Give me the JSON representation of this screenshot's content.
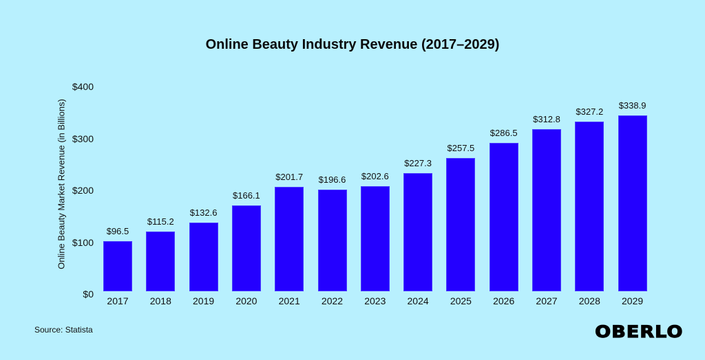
{
  "title": "Online Beauty Industry Revenue (2017–2029)",
  "source": "Source: Statista",
  "logo": "OBERLO",
  "colors": {
    "background": "#b8f0fe",
    "bar": "#2400ff",
    "text": "#111111"
  },
  "chart_data": {
    "type": "bar",
    "title": "Online Beauty Industry Revenue (2017–2029)",
    "xlabel": "",
    "ylabel": "Online Beauty Market Revenue (in Billions)",
    "categories": [
      "2017",
      "2018",
      "2019",
      "2020",
      "2021",
      "2022",
      "2023",
      "2024",
      "2025",
      "2026",
      "2027",
      "2028",
      "2029"
    ],
    "values": [
      96.5,
      115.2,
      132.6,
      166.1,
      201.7,
      196.6,
      202.6,
      227.3,
      257.5,
      286.5,
      312.8,
      327.2,
      338.9
    ],
    "value_labels": [
      "$96.5",
      "$115.2",
      "$132.6",
      "$166.1",
      "$201.7",
      "$196.6",
      "$202.6",
      "$227.3",
      "$257.5",
      "$286.5",
      "$312.8",
      "$327.2",
      "$338.9"
    ],
    "ylim": [
      0,
      400
    ],
    "yticks": [
      0,
      100,
      200,
      300,
      400
    ],
    "ytick_labels": [
      "$0",
      "$100",
      "$200",
      "$300",
      "$400"
    ],
    "grid": false,
    "legend": null
  }
}
